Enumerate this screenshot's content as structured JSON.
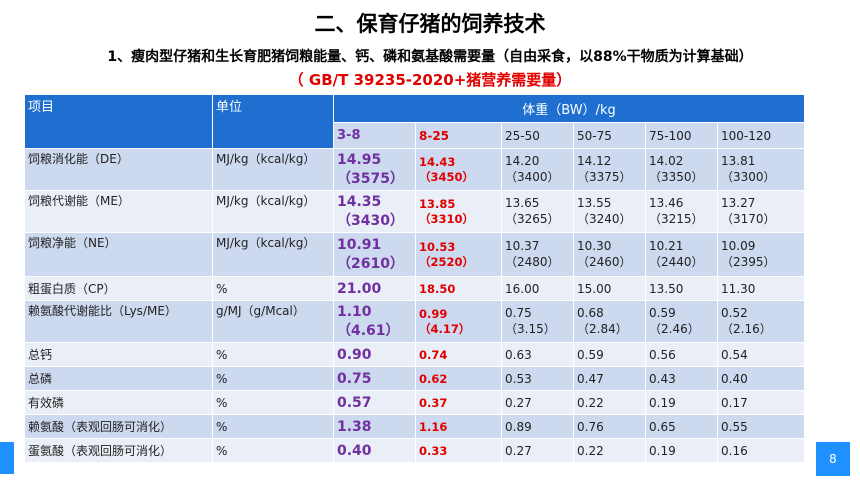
{
  "title": "二、保育仔猪的饲养技术",
  "subtitle": "1、瘦肉型仔猪和生长育肥猪饲粮能量、钙、磷和氨基酸需要量（自由采食，以88%干物质为计算基础）",
  "standard": "（ GB/T 39235-2020+猪营养需要量）",
  "page_number": "8",
  "colors": {
    "header_blue": "#1e6fd0",
    "purple": "#7030a0",
    "red": "#e00000"
  },
  "table": {
    "header": {
      "item": "项目",
      "unit": "单位",
      "bw": "体重（BW）/kg"
    },
    "bw_ranges": [
      "3-8",
      "8-25",
      "25-50",
      "50-75",
      "75-100",
      "100-120"
    ],
    "rows": [
      {
        "item": "饲粮消化能（DE）",
        "unit": "MJ/kg（kcal/kg）",
        "v": [
          "14.95",
          "14.43",
          "14.20",
          "14.12",
          "14.02",
          "13.81"
        ],
        "s": [
          "（3575）",
          "（3450）",
          "（3400）",
          "（3375）",
          "（3350）",
          "（3300）"
        ]
      },
      {
        "item": "饲粮代谢能（ME）",
        "unit": "MJ/kg（kcal/kg）",
        "v": [
          "14.35",
          "13.85",
          "13.65",
          "13.55",
          "13.46",
          "13.27"
        ],
        "s": [
          "（3430）",
          "（3310）",
          "（3265）",
          "（3240）",
          "（3215）",
          "（3170）"
        ]
      },
      {
        "item": "饲粮净能（NE）",
        "unit": "MJ/kg（kcal/kg）",
        "v": [
          "10.91",
          "10.53",
          "10.37",
          "10.30",
          "10.21",
          "10.09"
        ],
        "s": [
          "（2610）",
          "（2520）",
          "（2480）",
          "（2460）",
          "（2440）",
          "（2395）"
        ]
      },
      {
        "item": "粗蛋白质（CP）",
        "unit": "%",
        "v": [
          "21.00",
          "18.50",
          "16.00",
          "15.00",
          "13.50",
          "11.30"
        ]
      },
      {
        "item": "赖氨酸代谢能比（Lys/ME）",
        "unit": "g/MJ（g/Mcal）",
        "v": [
          "1.10",
          "0.99",
          "0.75",
          "0.68",
          "0.59",
          "0.52"
        ],
        "s": [
          "（4.61）",
          "（4.17）",
          "（3.15）",
          "（2.84）",
          "（2.46）",
          "（2.16）"
        ]
      },
      {
        "item": "总钙",
        "unit": "%",
        "v": [
          "0.90",
          "0.74",
          "0.63",
          "0.59",
          "0.56",
          "0.54"
        ]
      },
      {
        "item": "总磷",
        "unit": "%",
        "v": [
          "0.75",
          "0.62",
          "0.53",
          "0.47",
          "0.43",
          "0.40"
        ]
      },
      {
        "item": "有效磷",
        "unit": "%",
        "v": [
          "0.57",
          "0.37",
          "0.27",
          "0.22",
          "0.19",
          "0.17"
        ]
      },
      {
        "item": "赖氨酸（表观回肠可消化）",
        "unit": "%",
        "v": [
          "1.38",
          "1.16",
          "0.89",
          "0.76",
          "0.65",
          "0.55"
        ]
      },
      {
        "item": "蛋氨酸（表观回肠可消化）",
        "unit": "%",
        "v": [
          "0.40",
          "0.33",
          "0.27",
          "0.22",
          "0.19",
          "0.16"
        ]
      }
    ]
  }
}
